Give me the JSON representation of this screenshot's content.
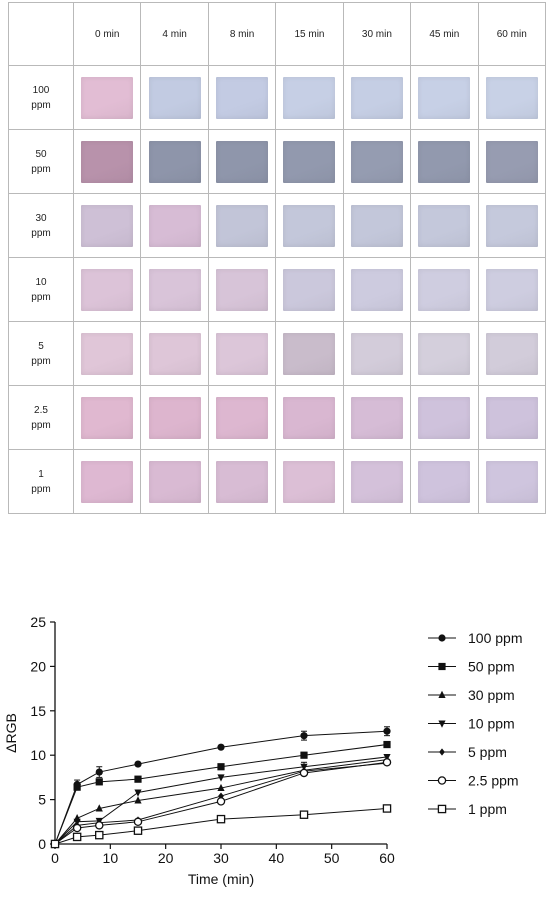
{
  "swatch_table": {
    "columns": [
      "0 min",
      "4 min",
      "8 min",
      "15 min",
      "30 min",
      "45 min",
      "60 min"
    ],
    "rows": [
      {
        "label": [
          "100",
          "ppm"
        ],
        "colors": [
          "#e2bdd4",
          "#c2cbe2",
          "#c3cbe3",
          "#c6cfe5",
          "#c5cee4",
          "#c7d0e6",
          "#c8d1e6"
        ]
      },
      {
        "label": [
          "50",
          "ppm"
        ],
        "colors": [
          "#b892ab",
          "#8e95aa",
          "#8f96ab",
          "#9299ae",
          "#959cb1",
          "#9299ae",
          "#979cb1"
        ]
      },
      {
        "label": [
          "30",
          "ppm"
        ],
        "colors": [
          "#cec0d6",
          "#d7bcd5",
          "#c2c5d8",
          "#c3c7da",
          "#c3c7da",
          "#c4c8db",
          "#c5c9dc"
        ]
      },
      {
        "label": [
          "10",
          "ppm"
        ],
        "colors": [
          "#dcc3d8",
          "#d9c4d9",
          "#d7c4d8",
          "#cbc8dc",
          "#cdcbdf",
          "#cfcde0",
          "#cecde0"
        ]
      },
      {
        "label": [
          "5",
          "ppm"
        ],
        "colors": [
          "#e0c6d8",
          "#dec6d8",
          "#dcc6d9",
          "#c9bccb",
          "#d3ccda",
          "#d4cfdc",
          "#d2ccda"
        ]
      },
      {
        "label": [
          "2.5",
          "ppm"
        ],
        "colors": [
          "#e0b8d0",
          "#ddb5ce",
          "#ddb7d0",
          "#d9b7d1",
          "#d6bcd6",
          "#cfc2dc",
          "#cec2dc"
        ]
      },
      {
        "label": [
          "1",
          "ppm"
        ],
        "colors": [
          "#deb8d2",
          "#d9bad3",
          "#d8bcd4",
          "#dcbfd6",
          "#d4c1da",
          "#cfc3dd",
          "#cfc5de"
        ]
      }
    ]
  },
  "chart_data": {
    "type": "line",
    "xlabel": "Time (min)",
    "ylabel": "ΔRGB",
    "xlim": [
      0,
      60
    ],
    "ylim": [
      0,
      25
    ],
    "xticks": [
      0,
      10,
      20,
      30,
      40,
      50,
      60
    ],
    "yticks": [
      0,
      5,
      10,
      15,
      20,
      25
    ],
    "grid": false,
    "legend_position": "right",
    "x": [
      0,
      4,
      8,
      15,
      30,
      45,
      60
    ],
    "series": [
      {
        "name": "100 ppm",
        "marker": "circle-filled",
        "values": [
          0,
          6.7,
          8.1,
          9.0,
          10.9,
          12.2,
          12.7
        ],
        "errors": [
          0,
          0.5,
          0.6,
          0,
          0,
          0.5,
          0.5
        ]
      },
      {
        "name": "50 ppm",
        "marker": "square-filled",
        "values": [
          0,
          6.4,
          7.0,
          7.3,
          8.7,
          10.0,
          11.2
        ],
        "errors": [
          0,
          0,
          0,
          0,
          0,
          0,
          0
        ]
      },
      {
        "name": "30 ppm",
        "marker": "triangle-up",
        "values": [
          0,
          2.9,
          4.0,
          4.9,
          6.3,
          8.3,
          9.5
        ],
        "errors": [
          0,
          0,
          0,
          0,
          0,
          0,
          0
        ]
      },
      {
        "name": "10 ppm",
        "marker": "triangle-down",
        "values": [
          0,
          2.5,
          2.6,
          5.8,
          7.5,
          8.7,
          9.8
        ],
        "errors": [
          0,
          0,
          0,
          0,
          0,
          0.5,
          0
        ]
      },
      {
        "name": "5 ppm",
        "marker": "diamond-filled",
        "values": [
          0,
          2.1,
          2.4,
          2.7,
          5.4,
          8.2,
          9.1
        ],
        "errors": [
          0,
          0,
          0,
          0,
          0,
          0,
          0
        ]
      },
      {
        "name": "2.5 ppm",
        "marker": "circle-open",
        "values": [
          0,
          1.8,
          2.1,
          2.5,
          4.8,
          8.0,
          9.2
        ],
        "errors": [
          0,
          0,
          0,
          0,
          0,
          0,
          0
        ]
      },
      {
        "name": "1 ppm",
        "marker": "square-open",
        "values": [
          0,
          0.8,
          1.0,
          1.5,
          2.8,
          3.3,
          4.0
        ],
        "errors": [
          0,
          0,
          0,
          0,
          0,
          0,
          0
        ]
      }
    ]
  }
}
